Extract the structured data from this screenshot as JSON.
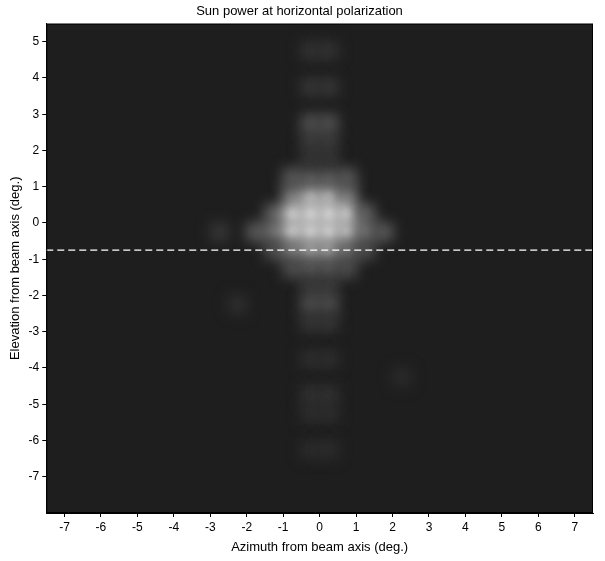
{
  "chart_data": {
    "type": "heatmap",
    "title": "Sun power at horizontal polarization",
    "x_label": "Azimuth from beam axis (deg.)",
    "y_label": "Elevation from beam axis (deg.)",
    "xlim": [
      -7.5,
      7.5
    ],
    "ylim": [
      -8,
      5.5
    ],
    "xticks": [
      -7,
      -6,
      -5,
      -4,
      -3,
      -2,
      -1,
      0,
      1,
      2,
      3,
      4,
      5,
      6,
      7
    ],
    "yticks": [
      -7,
      -6,
      -5,
      -4,
      -3,
      -2,
      -1,
      0,
      1,
      2,
      3,
      4,
      5
    ],
    "grid": false,
    "cell_size": 0.5,
    "zlim": [
      0,
      1
    ],
    "cells": [
      [
        -0.75,
        0.75,
        0.5
      ],
      [
        -0.25,
        0.75,
        0.85
      ],
      [
        0.25,
        0.75,
        0.85
      ],
      [
        0.75,
        0.75,
        0.5
      ],
      [
        -1.25,
        0.25,
        0.35
      ],
      [
        -0.75,
        0.25,
        0.95
      ],
      [
        -0.25,
        0.25,
        1
      ],
      [
        0.25,
        0.25,
        1
      ],
      [
        0.75,
        0.25,
        0.95
      ],
      [
        1.25,
        0.25,
        0.35
      ],
      [
        -1.75,
        -0.25,
        0.3
      ],
      [
        -1.25,
        -0.25,
        0.45
      ],
      [
        -0.75,
        -0.25,
        0.95
      ],
      [
        -0.25,
        -0.25,
        1
      ],
      [
        0.25,
        -0.25,
        1
      ],
      [
        0.75,
        -0.25,
        0.9
      ],
      [
        1.25,
        -0.25,
        0.45
      ],
      [
        1.75,
        -0.25,
        0.3
      ],
      [
        -1.25,
        -0.75,
        0.25
      ],
      [
        -0.75,
        -0.75,
        0.5
      ],
      [
        -0.25,
        -0.75,
        0.7
      ],
      [
        0.25,
        -0.75,
        0.7
      ],
      [
        0.75,
        -0.75,
        0.45
      ],
      [
        1.25,
        -0.75,
        0.25
      ],
      [
        -0.75,
        1.25,
        0.3
      ],
      [
        -0.25,
        1.25,
        0.35
      ],
      [
        0.25,
        1.25,
        0.35
      ],
      [
        0.75,
        1.25,
        0.3
      ],
      [
        -0.75,
        -1.25,
        0.25
      ],
      [
        -0.25,
        -1.25,
        0.3
      ],
      [
        0.25,
        -1.25,
        0.3
      ],
      [
        0.75,
        -1.25,
        0.25
      ],
      [
        -0.25,
        -1.75,
        0.15
      ],
      [
        0.25,
        -1.75,
        0.15
      ],
      [
        -0.25,
        1.75,
        0.12
      ],
      [
        0.25,
        1.75,
        0.12
      ],
      [
        -0.25,
        2.25,
        0.15
      ],
      [
        0.25,
        2.25,
        0.15
      ],
      [
        -0.25,
        2.75,
        0.25
      ],
      [
        0.25,
        2.75,
        0.25
      ],
      [
        -0.25,
        -2.25,
        0.25
      ],
      [
        0.25,
        -2.25,
        0.25
      ],
      [
        -0.25,
        -2.75,
        0.12
      ],
      [
        0.25,
        -2.75,
        0.12
      ],
      [
        -0.25,
        3.75,
        0.12
      ],
      [
        0.25,
        3.75,
        0.12
      ],
      [
        -0.25,
        4.75,
        0.1
      ],
      [
        0.25,
        4.75,
        0.1
      ],
      [
        -0.25,
        -3.75,
        0.08
      ],
      [
        0.25,
        -3.75,
        0.08
      ],
      [
        -0.25,
        -4.75,
        0.1
      ],
      [
        0.25,
        -4.75,
        0.1
      ],
      [
        -0.25,
        -5.25,
        0.08
      ],
      [
        0.25,
        -5.25,
        0.08
      ],
      [
        -0.25,
        -6.25,
        0.07
      ],
      [
        0.25,
        -6.25,
        0.07
      ],
      [
        -2.25,
        -2.25,
        0.08
      ],
      [
        2.25,
        -4.25,
        0.06
      ],
      [
        -2.75,
        -0.25,
        0.12
      ]
    ],
    "series": [
      {
        "type": "line",
        "line_style": "dashed",
        "color": "#ffffff",
        "x": [
          -7.5,
          7.5
        ],
        "values": [
          -0.75,
          -0.75
        ]
      }
    ]
  }
}
